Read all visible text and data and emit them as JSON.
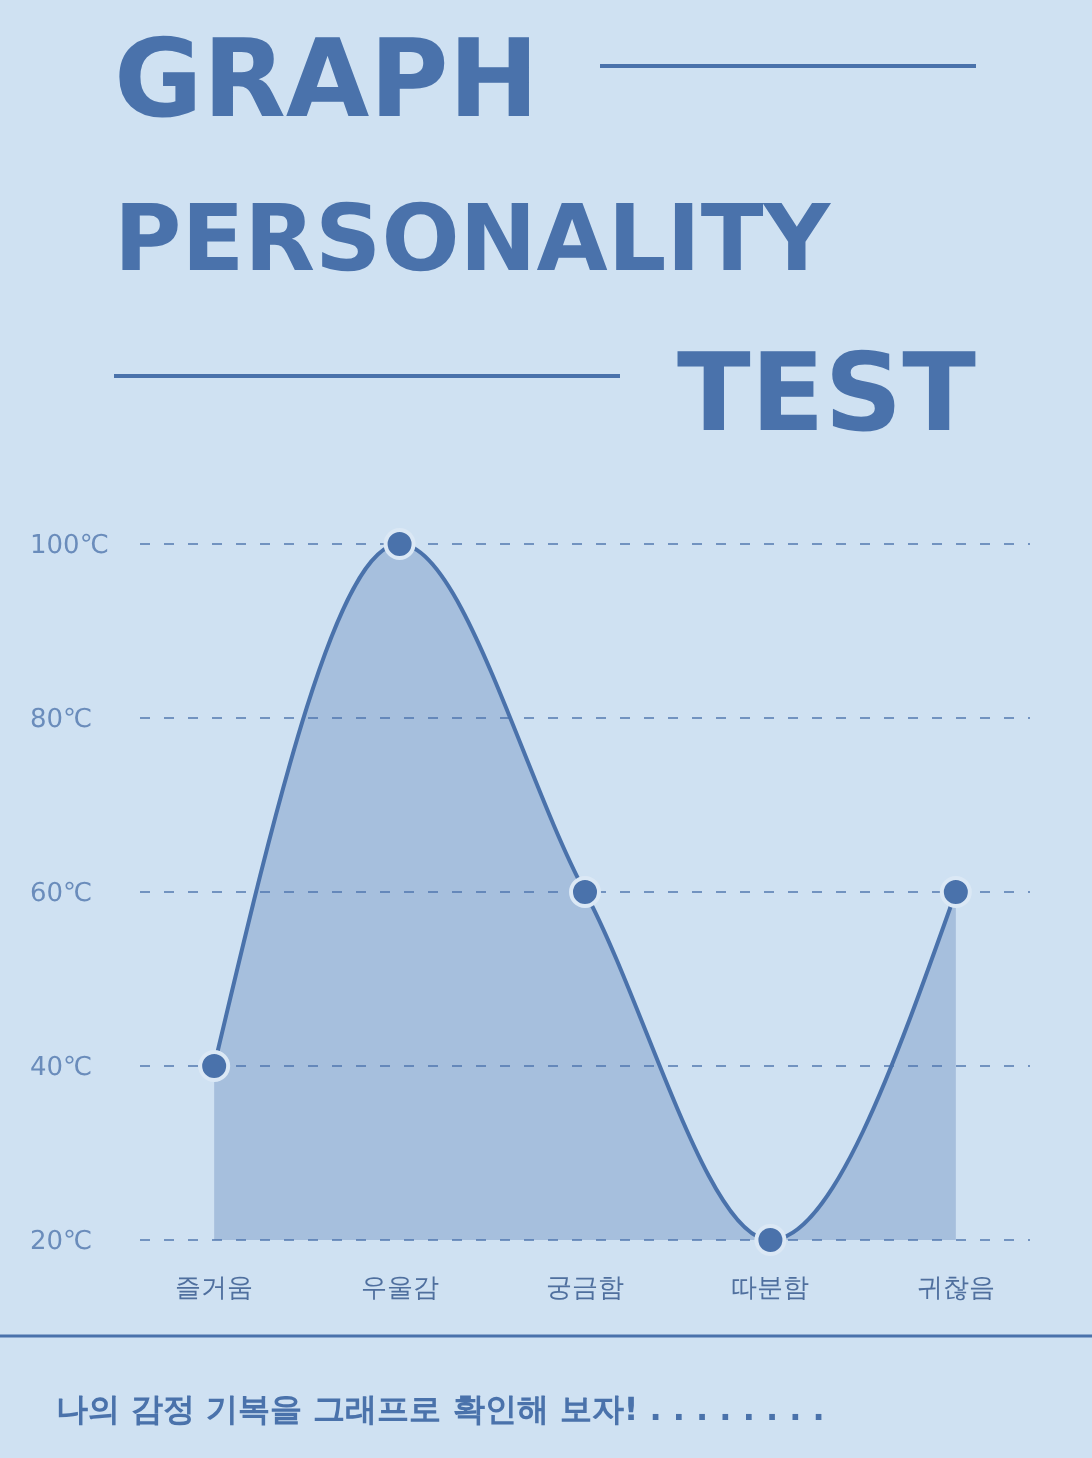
{
  "chart_data": {
    "type": "area",
    "title": "GRAPH PERSONALITY TEST",
    "categories": [
      "즐거움",
      "우울감",
      "궁금함",
      "따분함",
      "귀찮음"
    ],
    "series": [
      {
        "color": "#4a72ab",
        "values": [
          40,
          100,
          60,
          20,
          60
        ]
      }
    ],
    "ylim": [
      20,
      100
    ],
    "yticks": [
      {
        "value": 20,
        "label": "20℃"
      },
      {
        "value": 40,
        "label": "40℃"
      },
      {
        "value": 60,
        "label": "60℃"
      },
      {
        "value": 80,
        "label": "80℃"
      },
      {
        "value": 100,
        "label": "100℃"
      }
    ],
    "grid": "y",
    "marker": "circle",
    "line_style": "solid",
    "annotations": [
      "나의 감정 기복을 그래프로 확인해 보자! . . . . . . . ."
    ]
  }
}
